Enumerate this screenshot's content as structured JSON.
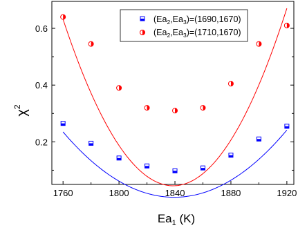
{
  "chart_data": {
    "type": "scatter",
    "xlabel_main": "Ea",
    "xlabel_sub": "1",
    "xlabel_unit": " (K)",
    "ylabel_main": "χ",
    "ylabel_sup": "2",
    "xlim": [
      1752,
      1925
    ],
    "ylim": [
      0.05,
      0.695
    ],
    "xticks": [
      1760,
      1800,
      1840,
      1880,
      1920
    ],
    "xtick_labels": [
      "1760",
      "1800",
      "1840",
      "1880",
      "1920"
    ],
    "yticks": [
      0.2,
      0.4,
      0.6
    ],
    "ytick_labels": [
      "0.2",
      "0.4",
      "0.6"
    ],
    "legend_position": "top-right",
    "series": [
      {
        "name_prefix": "(Ea",
        "name_sub1": "2",
        "name_mid": ",Ea",
        "name_sub2": "3",
        "name_suffix": ")=(1690,1670)",
        "color": "#0000ff",
        "marker": "half-filled-square",
        "x": [
          1760,
          1780,
          1800,
          1820,
          1840,
          1860,
          1880,
          1900,
          1920
        ],
        "y": [
          0.265,
          0.195,
          0.143,
          0.115,
          0.098,
          0.108,
          0.153,
          0.21,
          0.255
        ],
        "fit": [
          0.235,
          0.2415,
          0.0048,
          1838
        ]
      },
      {
        "name_prefix": "(Ea",
        "name_sub1": "2",
        "name_mid": ",Ea",
        "name_sub2": "3",
        "name_suffix": ")=(1710,1670)",
        "color": "#ff0000",
        "marker": "half-filled-circle",
        "x": [
          1760,
          1780,
          1800,
          1820,
          1840,
          1860,
          1880,
          1900,
          1920
        ],
        "y": [
          0.64,
          0.545,
          0.39,
          0.32,
          0.31,
          0.32,
          0.405,
          0.545,
          0.61
        ],
        "fit": [
          0.632,
          0.6705,
          0.0478,
          1844
        ]
      }
    ]
  }
}
